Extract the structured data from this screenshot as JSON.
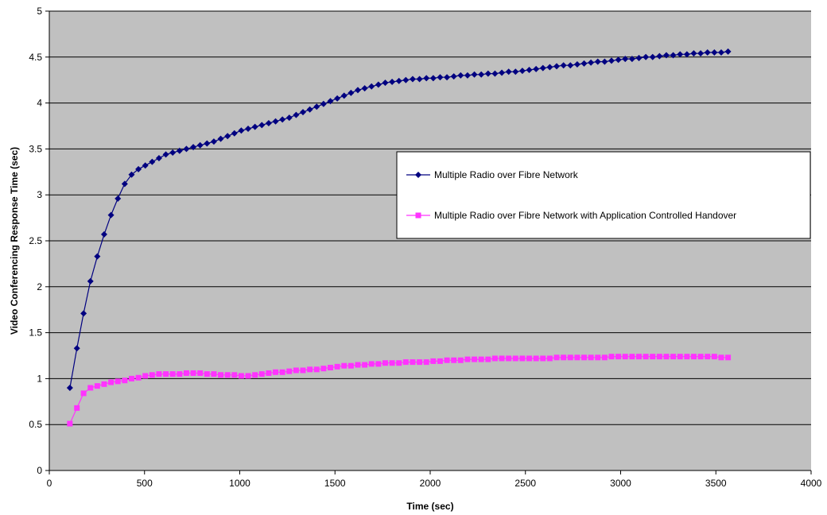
{
  "chart_data": {
    "type": "line",
    "title": "",
    "xlabel": "Time (sec)",
    "ylabel": "Video Conferencing Response Time (sec)",
    "xlim": [
      0,
      4000
    ],
    "ylim": [
      0,
      5
    ],
    "x_ticks": [
      "0",
      "500",
      "1000",
      "1500",
      "2000",
      "2500",
      "3000",
      "3500",
      "4000"
    ],
    "y_ticks": [
      "0",
      "0.5",
      "1",
      "1.5",
      "2",
      "2.5",
      "3",
      "3.5",
      "4",
      "4.5",
      "5"
    ],
    "grid": "horizontal",
    "legend_position": "right",
    "plot_background": "#c0c0c0",
    "series": [
      {
        "name": "Multiple Radio over Fibre Network",
        "color": "#000080",
        "marker": "diamond",
        "x": [
          108,
          145,
          180,
          216,
          252,
          288,
          324,
          360,
          396,
          432,
          468,
          504,
          540,
          576,
          612,
          648,
          684,
          720,
          756,
          792,
          828,
          864,
          900,
          936,
          972,
          1008,
          1044,
          1080,
          1116,
          1152,
          1188,
          1224,
          1260,
          1296,
          1332,
          1368,
          1404,
          1440,
          1476,
          1512,
          1548,
          1584,
          1620,
          1656,
          1692,
          1728,
          1764,
          1800,
          1836,
          1872,
          1908,
          1944,
          1980,
          2016,
          2052,
          2088,
          2124,
          2160,
          2196,
          2232,
          2268,
          2304,
          2340,
          2376,
          2412,
          2448,
          2484,
          2520,
          2556,
          2592,
          2628,
          2664,
          2700,
          2736,
          2772,
          2808,
          2844,
          2880,
          2916,
          2952,
          2988,
          3024,
          3060,
          3096,
          3132,
          3168,
          3204,
          3240,
          3276,
          3312,
          3348,
          3384,
          3420,
          3456,
          3492,
          3528,
          3564
        ],
        "values": [
          0.9,
          1.33,
          1.71,
          2.06,
          2.33,
          2.57,
          2.78,
          2.96,
          3.12,
          3.22,
          3.28,
          3.32,
          3.36,
          3.4,
          3.44,
          3.46,
          3.48,
          3.5,
          3.52,
          3.54,
          3.56,
          3.58,
          3.61,
          3.64,
          3.67,
          3.7,
          3.72,
          3.74,
          3.76,
          3.78,
          3.8,
          3.82,
          3.84,
          3.87,
          3.9,
          3.93,
          3.96,
          3.99,
          4.02,
          4.05,
          4.08,
          4.11,
          4.14,
          4.16,
          4.18,
          4.2,
          4.22,
          4.23,
          4.24,
          4.25,
          4.26,
          4.26,
          4.27,
          4.27,
          4.28,
          4.28,
          4.29,
          4.3,
          4.3,
          4.31,
          4.31,
          4.32,
          4.32,
          4.33,
          4.34,
          4.34,
          4.35,
          4.36,
          4.37,
          4.38,
          4.39,
          4.4,
          4.41,
          4.41,
          4.42,
          4.43,
          4.44,
          4.45,
          4.45,
          4.46,
          4.47,
          4.48,
          4.48,
          4.49,
          4.5,
          4.5,
          4.51,
          4.52,
          4.52,
          4.53,
          4.53,
          4.54,
          4.54,
          4.55,
          4.55,
          4.55,
          4.56
        ]
      },
      {
        "name": "Multiple Radio over Fibre Network with Application Controlled Handover",
        "color": "#ff33ff",
        "marker": "square",
        "x": [
          108,
          145,
          180,
          216,
          252,
          288,
          324,
          360,
          396,
          432,
          468,
          504,
          540,
          576,
          612,
          648,
          684,
          720,
          756,
          792,
          828,
          864,
          900,
          936,
          972,
          1008,
          1044,
          1080,
          1116,
          1152,
          1188,
          1224,
          1260,
          1296,
          1332,
          1368,
          1404,
          1440,
          1476,
          1512,
          1548,
          1584,
          1620,
          1656,
          1692,
          1728,
          1764,
          1800,
          1836,
          1872,
          1908,
          1944,
          1980,
          2016,
          2052,
          2088,
          2124,
          2160,
          2196,
          2232,
          2268,
          2304,
          2340,
          2376,
          2412,
          2448,
          2484,
          2520,
          2556,
          2592,
          2628,
          2664,
          2700,
          2736,
          2772,
          2808,
          2844,
          2880,
          2916,
          2952,
          2988,
          3024,
          3060,
          3096,
          3132,
          3168,
          3204,
          3240,
          3276,
          3312,
          3348,
          3384,
          3420,
          3456,
          3492,
          3528,
          3564
        ],
        "values": [
          0.51,
          0.68,
          0.84,
          0.9,
          0.92,
          0.94,
          0.96,
          0.97,
          0.98,
          1.0,
          1.01,
          1.03,
          1.04,
          1.05,
          1.05,
          1.05,
          1.05,
          1.06,
          1.06,
          1.06,
          1.05,
          1.05,
          1.04,
          1.04,
          1.04,
          1.03,
          1.03,
          1.04,
          1.05,
          1.06,
          1.07,
          1.07,
          1.08,
          1.09,
          1.09,
          1.1,
          1.1,
          1.11,
          1.12,
          1.13,
          1.14,
          1.14,
          1.15,
          1.15,
          1.16,
          1.16,
          1.17,
          1.17,
          1.17,
          1.18,
          1.18,
          1.18,
          1.18,
          1.19,
          1.19,
          1.2,
          1.2,
          1.2,
          1.21,
          1.21,
          1.21,
          1.21,
          1.22,
          1.22,
          1.22,
          1.22,
          1.22,
          1.22,
          1.22,
          1.22,
          1.22,
          1.23,
          1.23,
          1.23,
          1.23,
          1.23,
          1.23,
          1.23,
          1.23,
          1.24,
          1.24,
          1.24,
          1.24,
          1.24,
          1.24,
          1.24,
          1.24,
          1.24,
          1.24,
          1.24,
          1.24,
          1.24,
          1.24,
          1.24,
          1.24,
          1.23,
          1.23
        ]
      }
    ]
  }
}
